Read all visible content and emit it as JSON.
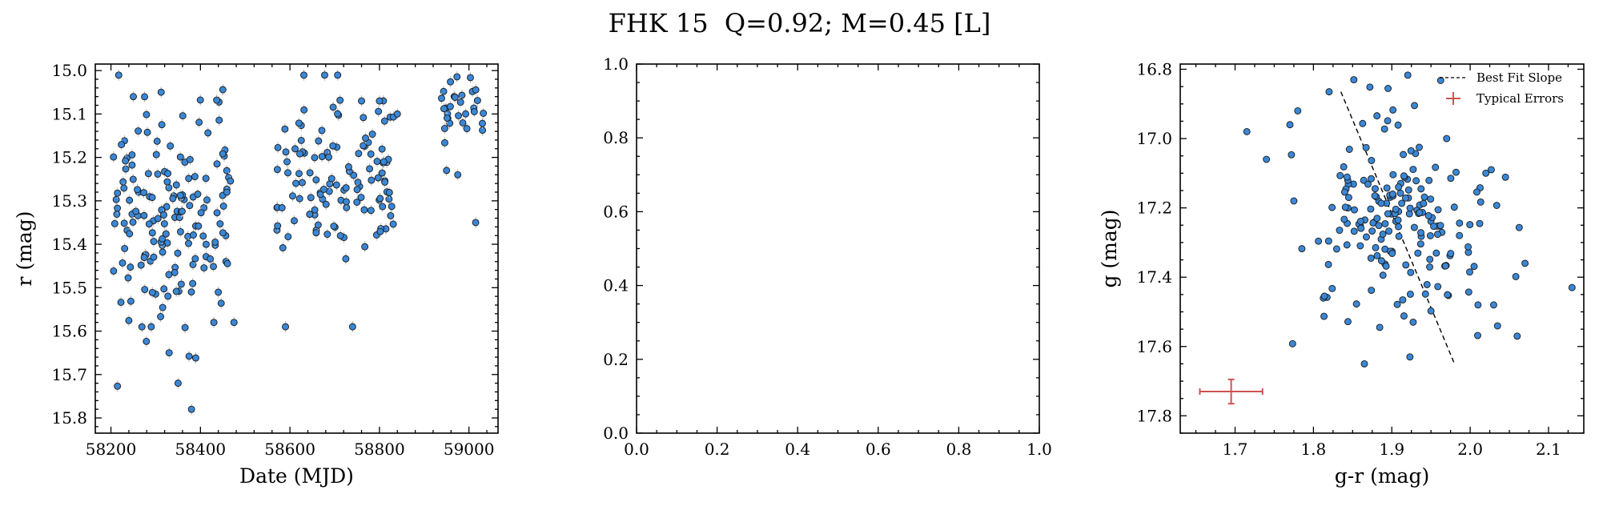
{
  "suptitle": "FHK 15  Q=0.92; M=0.45 [L]",
  "colors": {
    "marker": "#3a87d6",
    "marker_edge": "#1a1a1a",
    "errorbar": "#d05252",
    "fit_line": "#000000"
  },
  "chart_data": [
    {
      "type": "scatter",
      "xlabel": "Date (MJD)",
      "ylabel": "r (mag)",
      "xlim": [
        58165,
        59065
      ],
      "ylim": [
        15.835,
        14.985
      ],
      "y_inverted": true,
      "xticks": [
        58200,
        58400,
        58600,
        58800,
        59000
      ],
      "yticks": [
        15.0,
        15.1,
        15.2,
        15.3,
        15.4,
        15.5,
        15.6,
        15.7,
        15.8
      ],
      "ytick_decimals": 1,
      "grid": false,
      "point_groups": [
        {
          "x_range": [
            58205,
            58470
          ],
          "y_center": 15.33,
          "y_spread": 0.14,
          "count": 165
        },
        {
          "x_range": [
            58570,
            58835
          ],
          "y_center": 15.24,
          "y_spread": 0.1,
          "count": 120
        },
        {
          "x_range": [
            58935,
            59035
          ],
          "y_center": 15.1,
          "y_spread": 0.05,
          "count": 30
        }
      ],
      "points": [
        [
          58290,
          15.59
        ],
        [
          58330,
          15.65
        ],
        [
          58350,
          15.72
        ],
        [
          58380,
          15.78
        ],
        [
          58430,
          15.58
        ],
        [
          58475,
          15.58
        ],
        [
          58590,
          15.59
        ],
        [
          58740,
          15.59
        ],
        [
          58950,
          15.23
        ],
        [
          58975,
          15.24
        ],
        [
          59015,
          15.35
        ],
        [
          58760,
          15.07
        ],
        [
          58800,
          15.07
        ],
        [
          58840,
          15.1
        ],
        [
          58250,
          15.06
        ]
      ]
    },
    {
      "type": "scatter",
      "xlabel": "",
      "ylabel": "",
      "xlim": [
        0,
        1
      ],
      "ylim": [
        0,
        1
      ],
      "xticks": [
        0.0,
        0.2,
        0.4,
        0.6,
        0.8,
        1.0
      ],
      "yticks": [
        0.0,
        0.2,
        0.4,
        0.6,
        0.8,
        1.0
      ],
      "xtick_decimals": 1,
      "ytick_decimals": 1,
      "grid": false,
      "series": []
    },
    {
      "type": "scatter",
      "xlabel": "g-r (mag)",
      "ylabel": "g (mag)",
      "xlim": [
        1.63,
        2.145
      ],
      "ylim": [
        17.85,
        16.785
      ],
      "y_inverted": true,
      "xticks": [
        1.7,
        1.8,
        1.9,
        2.0,
        2.1
      ],
      "yticks": [
        16.8,
        17.0,
        17.2,
        17.4,
        17.6,
        17.8
      ],
      "xtick_decimals": 1,
      "ytick_decimals": 1,
      "grid": false,
      "legend": {
        "placement": "top-right",
        "entries": [
          "Best Fit Slope",
          "Typical Errors"
        ]
      },
      "fit_line": {
        "x": [
          1.835,
          1.98
        ],
        "y": [
          16.865,
          17.65
        ]
      },
      "typical_error": {
        "x": 1.695,
        "y": 17.73,
        "xerr": 0.04,
        "yerr": 0.035
      },
      "point_groups": [
        {
          "x_center": 1.9,
          "x_spread": 0.055,
          "y_center": 17.22,
          "y_spread": 0.16,
          "count": 190
        }
      ],
      "points": [
        [
          1.715,
          16.98
        ],
        [
          1.74,
          17.06
        ],
        [
          1.77,
          16.96
        ],
        [
          1.78,
          16.92
        ],
        [
          1.775,
          17.18
        ],
        [
          1.82,
          16.865
        ],
        [
          2.13,
          17.43
        ],
        [
          2.06,
          17.57
        ],
        [
          2.07,
          17.36
        ],
        [
          1.865,
          17.65
        ],
        [
          1.97,
          17.0
        ],
        [
          2.02,
          17.1
        ],
        [
          2.03,
          17.48
        ],
        [
          2.01,
          17.48
        ]
      ]
    }
  ]
}
